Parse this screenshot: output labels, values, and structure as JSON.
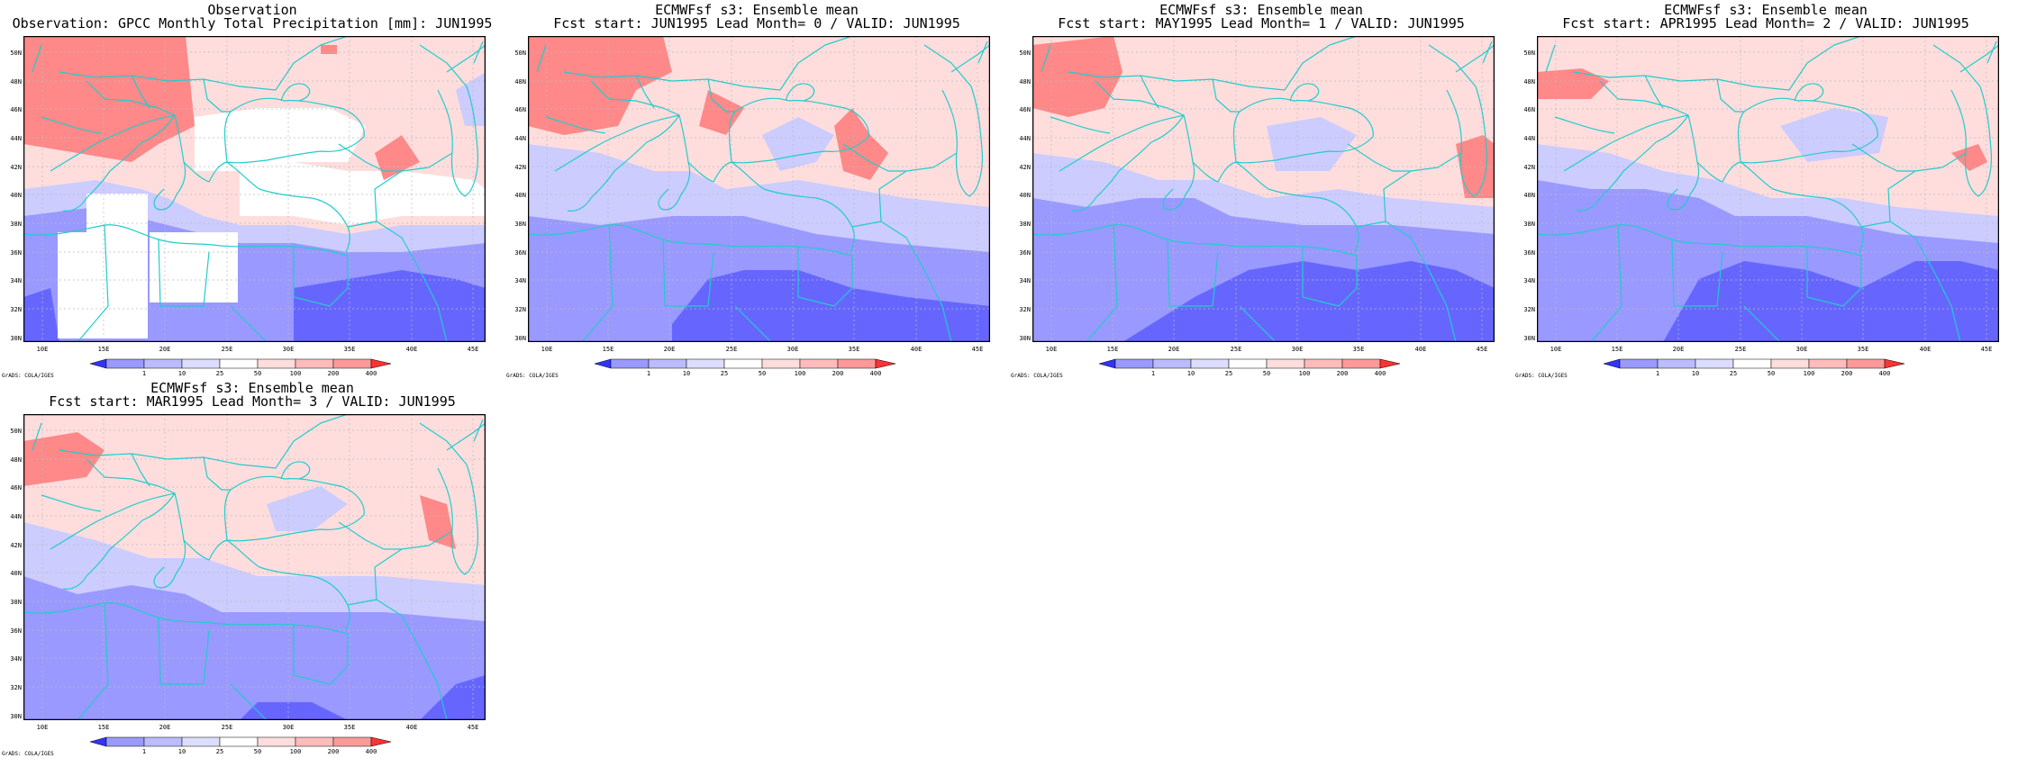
{
  "panels": [
    {
      "title1": "Observation",
      "title2": "Observation: GPCC Monthly Total Precipitation [mm]: JUN1995"
    },
    {
      "title1": "ECMWFsf s3: Ensemble mean",
      "title2": "Fcst start: JUN1995  Lead Month= 0 / VALID: JUN1995"
    },
    {
      "title1": "ECMWFsf s3: Ensemble mean",
      "title2": "Fcst start: MAY1995  Lead Month= 1 / VALID: JUN1995"
    },
    {
      "title1": "ECMWFsf s3: Ensemble mean",
      "title2": "Fcst start: APR1995  Lead Month= 2 / VALID: JUN1995"
    },
    {
      "title1": "ECMWFsf s3: Ensemble mean",
      "title2": "Fcst start: MAR1995  Lead Month= 3 / VALID: JUN1995"
    }
  ],
  "map": {
    "lat_labels": [
      "50N",
      "48N",
      "46N",
      "44N",
      "42N",
      "40N",
      "38N",
      "36N",
      "34N",
      "32N",
      "30N"
    ],
    "lon_labels": [
      "10E",
      "15E",
      "20E",
      "25E",
      "30E",
      "35E",
      "40E",
      "45E"
    ],
    "lat_range": [
      30,
      51.5
    ],
    "lon_range": [
      8.5,
      46
    ]
  },
  "colorbar": {
    "labels": [
      "1",
      "10",
      "25",
      "50",
      "100",
      "200",
      "400"
    ],
    "colors": [
      "#3333ff",
      "#9999ff",
      "#bbbbff",
      "#ddddff",
      "#ffffff",
      "#ffdddd",
      "#ffbbbb",
      "#ff9999",
      "#ff3333"
    ]
  },
  "credit": "GrADS: COLA/IGES",
  "colors": {
    "coast": "#22cccc",
    "grid": "#bbbbbb",
    "deep_blue": "#6666ff",
    "blue": "#9999ff",
    "light_blue": "#ccccff",
    "light_red": "#ffdddd",
    "mid_red": "#ffb3b3",
    "red": "#ff8888"
  }
}
